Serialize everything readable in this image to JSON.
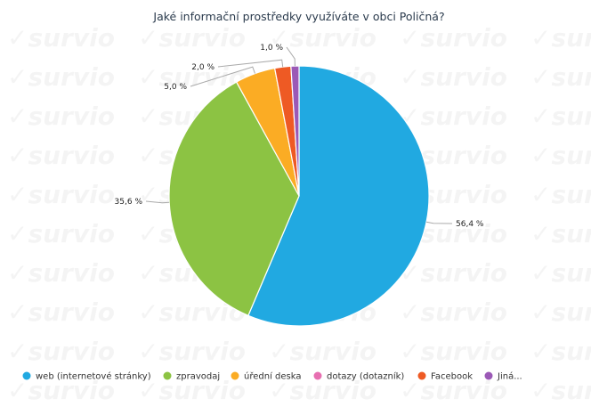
{
  "watermark": {
    "text": "survio"
  },
  "chart_data": {
    "type": "pie",
    "title": "Jaké informační prostředky využíváte v obci Poličná?",
    "slices": [
      {
        "label": "web (internetové stránky)",
        "value": 56.4,
        "value_label": "56,4 %",
        "color": "#21a9e1"
      },
      {
        "label": "zpravodaj",
        "value": 35.6,
        "value_label": "35,6 %",
        "color": "#8cc343"
      },
      {
        "label": "úřední deska",
        "value": 5.0,
        "value_label": "5,0 %",
        "color": "#fbac24"
      },
      {
        "label": "dotazy (dotazník)",
        "value": 0,
        "value_label": "",
        "color": "#e76fb1"
      },
      {
        "label": "Facebook",
        "value": 2.0,
        "value_label": "2,0 %",
        "color": "#ee5a24"
      },
      {
        "label": "Jiná...",
        "value": 1.0,
        "value_label": "1,0 %",
        "color": "#9b59b6"
      }
    ],
    "legend_position": "bottom-left"
  }
}
